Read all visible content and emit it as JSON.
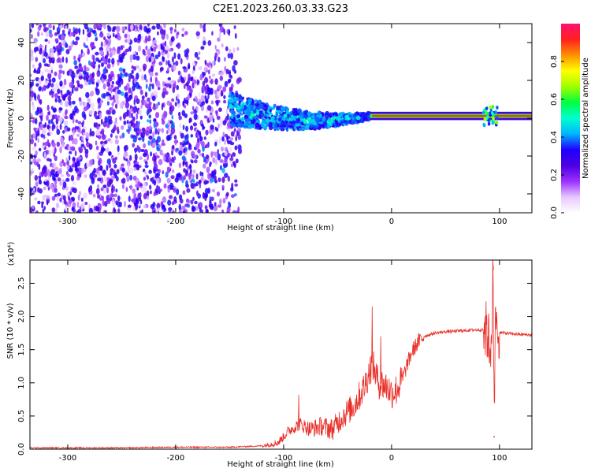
{
  "title": "C2E1.2023.260.03.33.G23",
  "chart_data": [
    {
      "type": "heatmap",
      "title": "C2E1.2023.260.03.33.G23",
      "xlabel": "Height of straight line (km)",
      "ylabel": "Frequency (Hz)",
      "xlim": [
        -335,
        130
      ],
      "ylim": [
        -50,
        50
      ],
      "x_ticks": [
        -300,
        -200,
        -100,
        0,
        100
      ],
      "y_ticks": [
        -40,
        -20,
        0,
        20,
        40
      ],
      "colorbar": {
        "label": "Normalized spectral amplitude",
        "range": [
          0.0,
          1.0
        ],
        "ticks": [
          0.0,
          0.2,
          0.4,
          0.6,
          0.8
        ],
        "colors": [
          "#ffffff",
          "#e6c8ff",
          "#9b30ff",
          "#4b00e0",
          "#1e00ff",
          "#00b4ff",
          "#00ffd0",
          "#00ff40",
          "#a0ff00",
          "#ffff00",
          "#ff9000",
          "#ff2020",
          "#ff1070"
        ]
      },
      "features": {
        "scatter_region": [
          -335,
          -140
        ],
        "scatter_amplitude_range": [
          0.05,
          0.35
        ],
        "transition_region": [
          -150,
          -20
        ],
        "transition_amplitude_range": [
          0.3,
          0.55
        ],
        "transition_frequency_drift": [
          5,
          1
        ],
        "steady_line_region": [
          -20,
          130
        ],
        "steady_line_frequency": 1.2,
        "steady_line_amplitude": 0.9,
        "burst_at_km": 92
      }
    },
    {
      "type": "line",
      "xlabel": "Height of straight line (km)",
      "ylabel": "SNR (10 * v/v)",
      "y_exponent": "(x10⁴)",
      "xlim": [
        -335,
        130
      ],
      "ylim": [
        0,
        2.85
      ],
      "x_ticks": [
        -300,
        -200,
        -100,
        0,
        100
      ],
      "y_ticks": [
        0.0,
        0.5,
        1.0,
        1.5,
        2.0,
        2.5
      ],
      "line_color": "#e8302a",
      "series": [
        {
          "x": [
            -335,
            -300,
            -250,
            -200,
            -150,
            -120,
            -105,
            -95,
            -85,
            -75,
            -65,
            -55,
            -45,
            -35,
            -25,
            -18,
            -12,
            -5,
            0,
            5,
            10,
            15,
            20,
            25,
            30,
            40,
            50,
            60,
            70,
            80,
            88,
            92,
            94,
            95,
            96,
            100,
            110,
            120,
            130
          ],
          "values": [
            0.02,
            0.02,
            0.02,
            0.03,
            0.03,
            0.05,
            0.1,
            0.28,
            0.38,
            0.3,
            0.35,
            0.3,
            0.5,
            0.65,
            0.95,
            1.3,
            1.0,
            0.95,
            0.85,
            0.9,
            1.05,
            1.3,
            1.5,
            1.62,
            1.7,
            1.75,
            1.77,
            1.78,
            1.79,
            1.8,
            1.8,
            1.5,
            2.7,
            0.2,
            1.8,
            1.76,
            1.74,
            1.73,
            1.72
          ]
        }
      ],
      "spikes": [
        {
          "x": -86,
          "value": 0.82
        },
        {
          "x": -18,
          "value": 2.15
        },
        {
          "x": -10,
          "value": 1.7
        },
        {
          "x": 94,
          "value": 2.8
        },
        {
          "x": 95,
          "value": 0.18
        }
      ]
    }
  ]
}
